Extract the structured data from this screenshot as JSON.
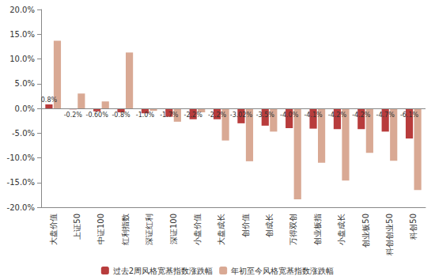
{
  "chart_data": {
    "type": "bar",
    "categories": [
      "大盘价值",
      "上证50",
      "中证100",
      "红利指数",
      "深证红利",
      "深证100",
      "小盘价值",
      "大盘成长",
      "创价值",
      "创成长",
      "万得双创",
      "创业板指",
      "小盘成长",
      "创业板50",
      "科创创业50",
      "科创50"
    ],
    "series": [
      {
        "name": "过去2周风格宽基指数涨跌幅",
        "color": "#B83C3C",
        "data_labels": true,
        "values": [
          0.8,
          -0.2,
          -0.6,
          -0.8,
          -1.0,
          -1.7,
          -2.2,
          -2.2,
          -3.02,
          -3.5,
          -4.0,
          -4.1,
          -4.2,
          -4.2,
          -4.7,
          -6.1
        ],
        "value_labels": [
          "0.8%",
          "-0.2%",
          "-0.60%",
          "-0.8%",
          "-1.0%",
          "-1.7%",
          "-2.2%",
          "-2.2%",
          "-3.02%",
          "-3.5%",
          "-4.0%",
          "-4.1%",
          "-4.2%",
          "-4.2%",
          "-4.7%",
          "-6.1%"
        ]
      },
      {
        "name": "年初至今风格宽基指数涨跌幅",
        "color": "#D9A994",
        "values": [
          13.7,
          3.0,
          1.4,
          11.3,
          -0.5,
          -2.7,
          -0.8,
          -6.5,
          -10.7,
          -4.7,
          -18.4,
          -11.0,
          -14.6,
          -9.0,
          -10.6,
          -16.5
        ]
      }
    ],
    "ylim": [
      -20,
      20
    ],
    "yticks": [
      {
        "value": -20,
        "label": "-20.0%"
      },
      {
        "value": -15,
        "label": "-15.0%"
      },
      {
        "value": -10,
        "label": "-10.0%"
      },
      {
        "value": -5,
        "label": "-5.0%"
      },
      {
        "value": 0,
        "label": "0.0%"
      },
      {
        "value": 5,
        "label": "5.0%"
      },
      {
        "value": 10,
        "label": "10.0%"
      },
      {
        "value": 15,
        "label": "15.0%"
      },
      {
        "value": 20,
        "label": "20.0%"
      }
    ],
    "grid": false,
    "legend": "bottom"
  }
}
